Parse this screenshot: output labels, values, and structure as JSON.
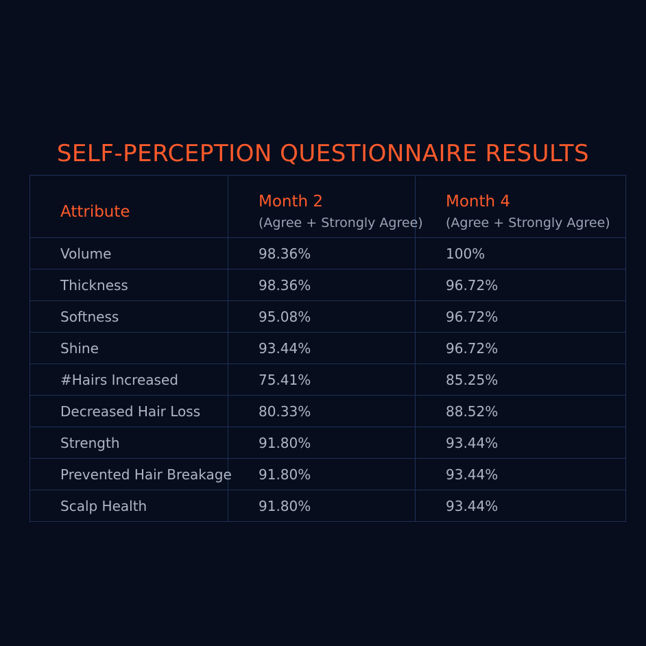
{
  "title": "SELF-PERCEPTION QUESTIONNAIRE RESULTS",
  "colors": {
    "background": "#070d1c",
    "accent": "#ff5a2c",
    "text": "#aeb5c3",
    "grid": "#1d2f58"
  },
  "chart_data": {
    "type": "table",
    "title": "SELF-PERCEPTION QUESTIONNAIRE RESULTS",
    "columns": [
      {
        "label": "Attribute",
        "sub": ""
      },
      {
        "label": "Month 2",
        "sub": "(Agree + Strongly Agree)"
      },
      {
        "label": "Month 4",
        "sub": "(Agree + Strongly Agree)"
      }
    ],
    "rows": [
      [
        "Volume",
        "98.36%",
        " 100%"
      ],
      [
        "Thickness",
        "98.36%",
        "96.72%"
      ],
      [
        "Softness",
        "95.08%",
        "96.72%"
      ],
      [
        "Shine",
        "93.44%",
        "96.72%"
      ],
      [
        "#Hairs Increased",
        "75.41%",
        "85.25%"
      ],
      [
        "Decreased Hair Loss",
        "80.33%",
        "88.52%"
      ],
      [
        "Strength",
        "91.80%",
        "93.44%"
      ],
      [
        "Prevented Hair Breakage",
        "91.80%",
        "93.44%"
      ],
      [
        "Scalp Health",
        "91.80%",
        "93.44%"
      ]
    ]
  }
}
